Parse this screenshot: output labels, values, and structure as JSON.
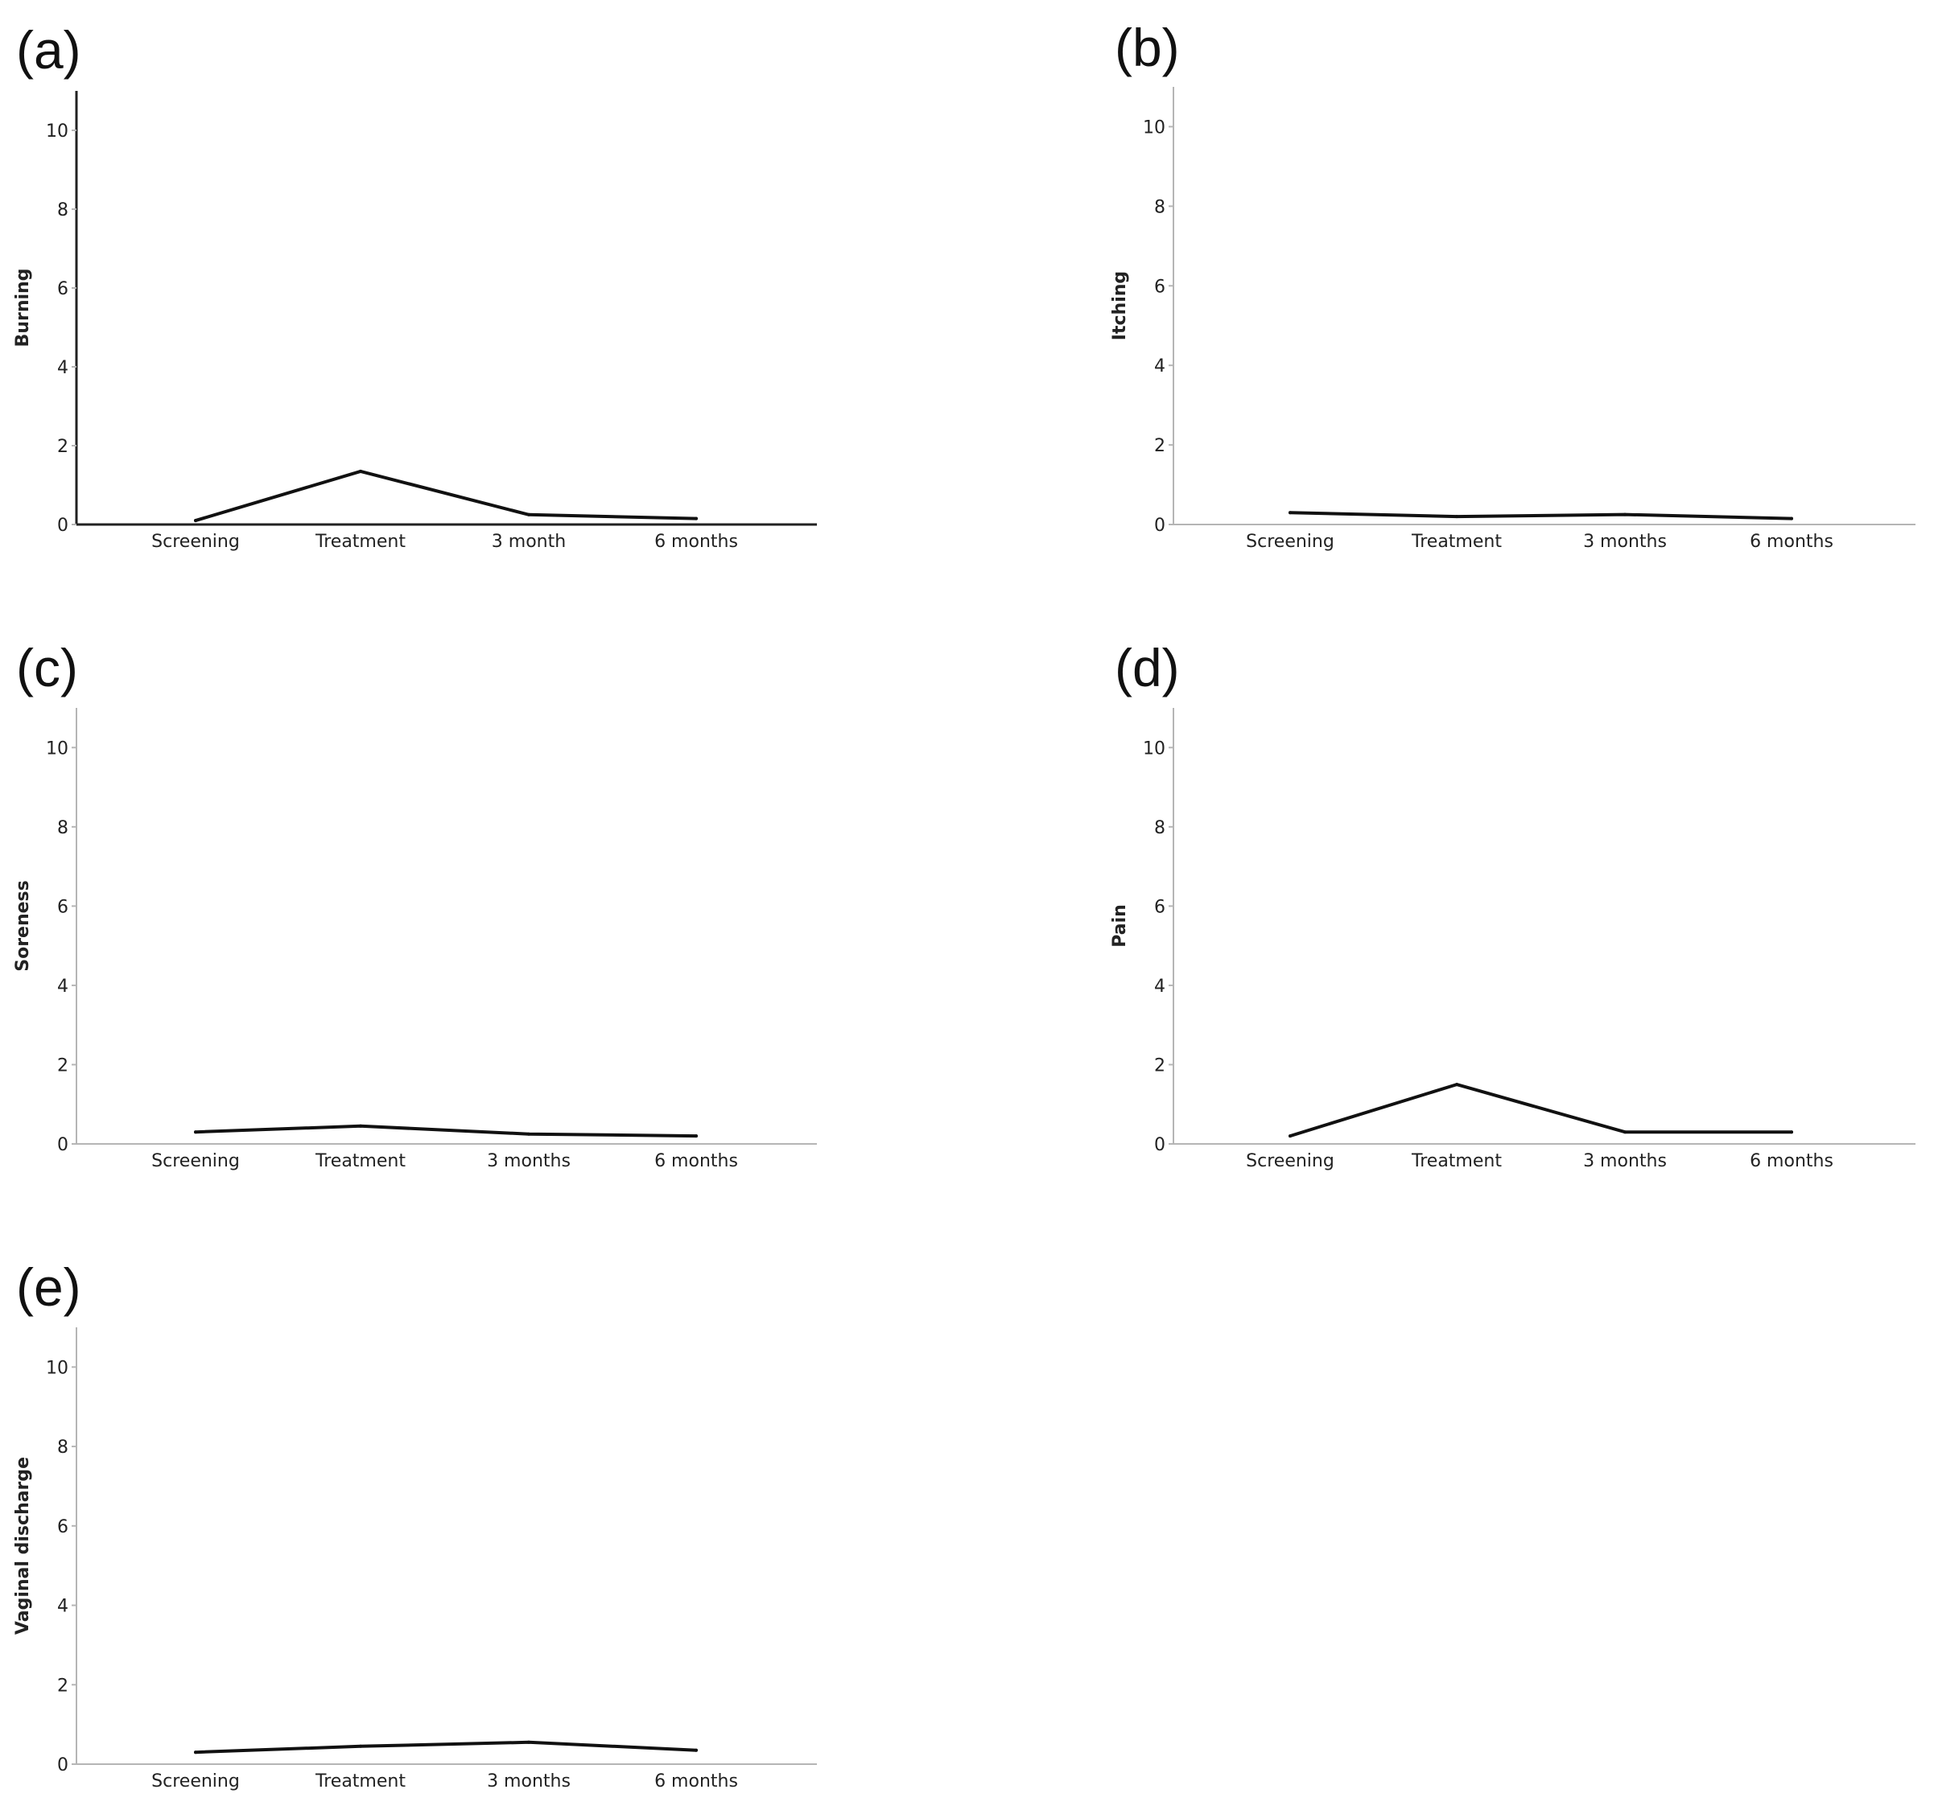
{
  "chart_data": [
    {
      "type": "line",
      "panel_label": "(a)",
      "ylabel": "Burning",
      "categories": [
        "Screening",
        "Treatment",
        "3 month",
        "6 months"
      ],
      "values": [
        0.1,
        1.35,
        0.25,
        0.15
      ],
      "ylim": [
        0,
        11
      ],
      "yticks": [
        0,
        2,
        4,
        6,
        8,
        10
      ],
      "grid": false
    },
    {
      "type": "line",
      "panel_label": "(b)",
      "ylabel": "Itching",
      "categories": [
        "Screening",
        "Treatment",
        "3 months",
        "6 months"
      ],
      "values": [
        0.3,
        0.2,
        0.25,
        0.15
      ],
      "ylim": [
        0,
        11
      ],
      "yticks": [
        0,
        2,
        4,
        6,
        8,
        10
      ],
      "grid": false
    },
    {
      "type": "line",
      "panel_label": "(c)",
      "ylabel": "Soreness",
      "categories": [
        "Screening",
        "Treatment",
        "3 months",
        "6 months"
      ],
      "values": [
        0.3,
        0.45,
        0.25,
        0.2
      ],
      "ylim": [
        0,
        11
      ],
      "yticks": [
        0,
        2,
        4,
        6,
        8,
        10
      ],
      "grid": false
    },
    {
      "type": "line",
      "panel_label": "(d)",
      "ylabel": "Pain",
      "categories": [
        "Screening",
        "Treatment",
        "3 months",
        "6 months"
      ],
      "values": [
        0.2,
        1.5,
        0.3,
        0.3
      ],
      "ylim": [
        0,
        11
      ],
      "yticks": [
        0,
        2,
        4,
        6,
        8,
        10
      ],
      "grid": false
    },
    {
      "type": "line",
      "panel_label": "(e)",
      "ylabel": "Vaginal discharge",
      "categories": [
        "Screening",
        "Treatment",
        "3 months",
        "6 months"
      ],
      "values": [
        0.3,
        0.45,
        0.55,
        0.35
      ],
      "ylim": [
        0,
        11
      ],
      "yticks": [
        0,
        2,
        4,
        6,
        8,
        10
      ],
      "grid": false
    }
  ]
}
